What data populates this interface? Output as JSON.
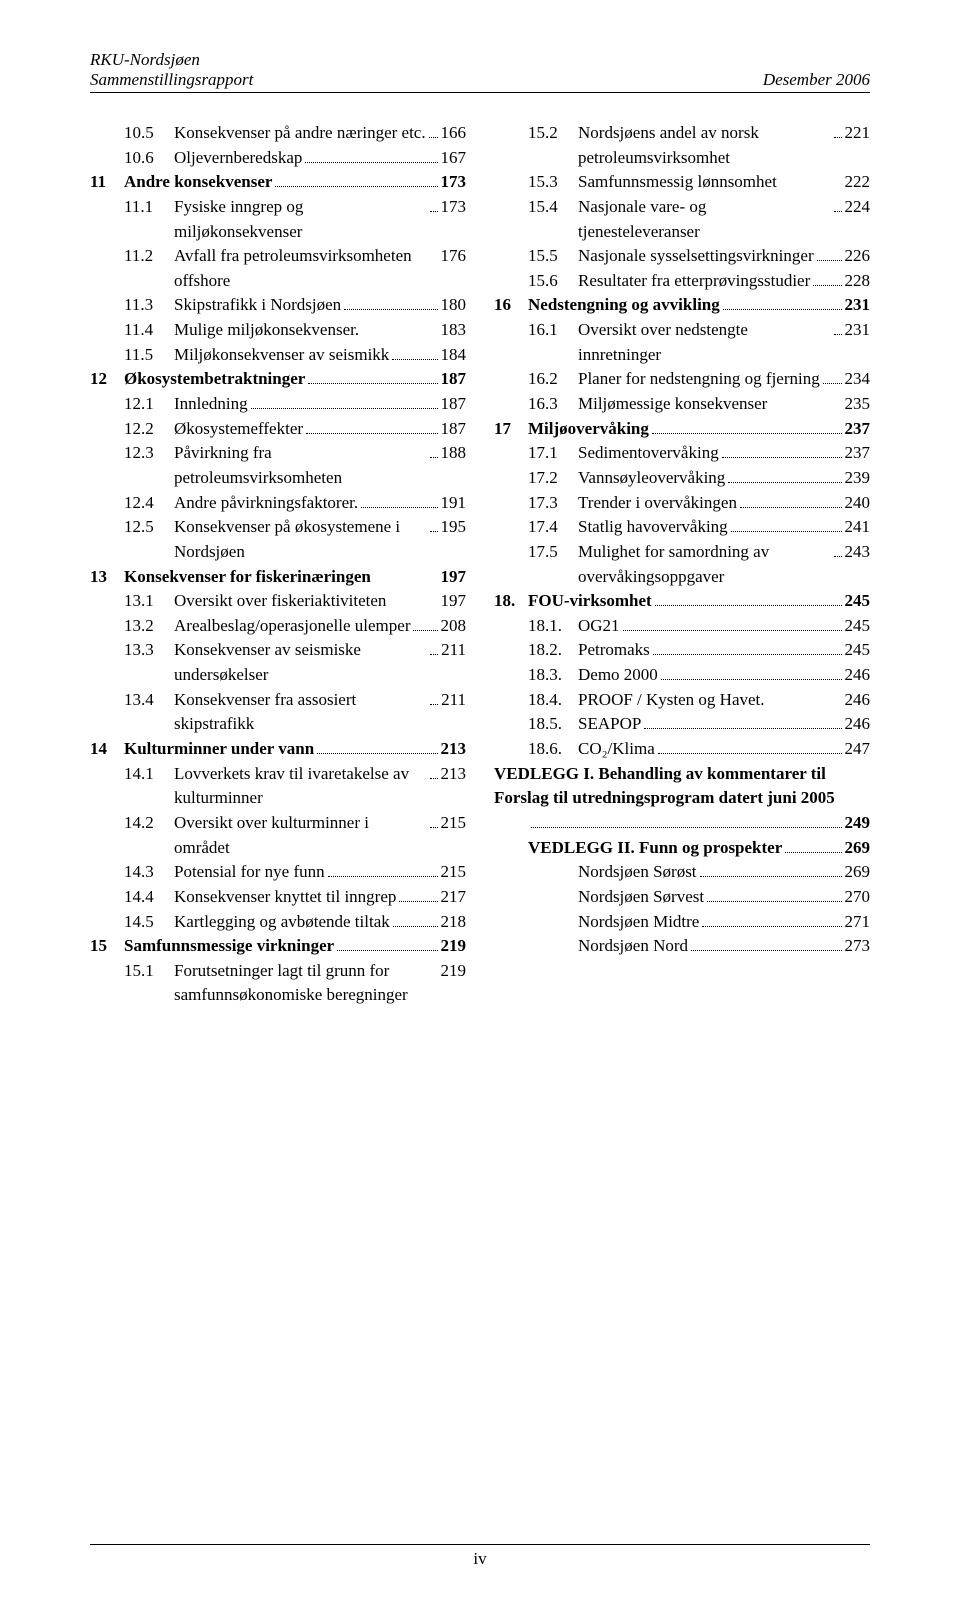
{
  "header": {
    "title_line1": "RKU-Nordsjøen",
    "title_line2": "Sammenstillingsrapport",
    "right": "Desember 2006"
  },
  "footer": {
    "page": "iv"
  },
  "left": [
    {
      "lvl": 2,
      "num": "10.5",
      "txt": "Konsekvenser på andre næringer etc.",
      "pg": "166"
    },
    {
      "lvl": 2,
      "num": "10.6",
      "txt": "Oljevernberedskap",
      "pg": "167"
    },
    {
      "lvl": 1,
      "num": "11",
      "txt": "Andre konsekvenser",
      "pg": "173"
    },
    {
      "lvl": 2,
      "num": "11.1",
      "txt": "Fysiske inngrep og miljøkonsekvenser",
      "pg": "173"
    },
    {
      "lvl": 2,
      "num": "11.2",
      "txt": "Avfall fra petroleumsvirksomheten offshore",
      "pg": "176",
      "nodots": true
    },
    {
      "lvl": 2,
      "num": "11.3",
      "txt": "Skipstrafikk i Nordsjøen",
      "pg": "180"
    },
    {
      "lvl": 2,
      "num": "11.4",
      "txt": "Mulige miljøkonsekvenser.",
      "pg": "183",
      "nodots": true
    },
    {
      "lvl": 2,
      "num": "11.5",
      "txt": "Miljøkonsekvenser av seismikk",
      "pg": "184"
    },
    {
      "lvl": 1,
      "num": "12",
      "txt": "Økosystembetraktninger",
      "pg": "187"
    },
    {
      "lvl": 2,
      "num": "12.1",
      "txt": "Innledning",
      "pg": "187"
    },
    {
      "lvl": 2,
      "num": "12.2",
      "txt": "Økosystemeffekter",
      "pg": "187"
    },
    {
      "lvl": 2,
      "num": "12.3",
      "txt": "Påvirkning fra petroleumsvirksomheten",
      "pg": "188"
    },
    {
      "lvl": 2,
      "num": "12.4",
      "txt": "Andre påvirkningsfaktorer.",
      "pg": "191"
    },
    {
      "lvl": 2,
      "num": "12.5",
      "txt": "Konsekvenser på økosystemene i Nordsjøen",
      "pg": "195"
    },
    {
      "lvl": 1,
      "num": "13",
      "txt": "Konsekvenser for fiskerinæringen",
      "pg": "197",
      "nodots": true
    },
    {
      "lvl": 2,
      "num": "13.1",
      "txt": "Oversikt over fiskeriaktiviteten",
      "pg": "197",
      "nodots": true
    },
    {
      "lvl": 2,
      "num": "13.2",
      "txt": "Arealbeslag/operasjonelle ulemper",
      "pg": "208"
    },
    {
      "lvl": 2,
      "num": "13.3",
      "txt": "Konsekvenser av seismiske undersøkelser",
      "pg": "211"
    },
    {
      "lvl": 2,
      "num": "13.4",
      "txt": "Konsekvenser fra assosiert skipstrafikk",
      "pg": "211"
    },
    {
      "lvl": 1,
      "num": "14",
      "txt": "Kulturminner under vann",
      "pg": "213"
    },
    {
      "lvl": 2,
      "num": "14.1",
      "txt": "Lovverkets krav til ivaretakelse av kulturminner",
      "pg": "213"
    },
    {
      "lvl": 2,
      "num": "14.2",
      "txt": "Oversikt over kulturminner i området",
      "pg": "215"
    },
    {
      "lvl": 2,
      "num": "14.3",
      "txt": "Potensial for nye funn",
      "pg": "215"
    },
    {
      "lvl": 2,
      "num": "14.4",
      "txt": "Konsekvenser knyttet til inngrep",
      "pg": "217"
    },
    {
      "lvl": 2,
      "num": "14.5",
      "txt": "Kartlegging og avbøtende tiltak",
      "pg": "218"
    },
    {
      "lvl": 1,
      "num": "15",
      "txt": "Samfunnsmessige virkninger",
      "pg": "219"
    },
    {
      "lvl": 2,
      "num": "15.1",
      "txt": "Forutsetninger lagt til grunn for samfunnsøkonomiske beregninger",
      "pg": "219",
      "nodots": true
    }
  ],
  "right": [
    {
      "lvl": 2,
      "num": "15.2",
      "txt": "Nordsjøens andel av norsk petroleumsvirksomhet",
      "pg": "221"
    },
    {
      "lvl": 2,
      "num": "15.3",
      "txt": "Samfunnsmessig lønnsomhet",
      "pg": "222",
      "nodots": true
    },
    {
      "lvl": 2,
      "num": "15.4",
      "txt": "Nasjonale vare- og tjenesteleveranser",
      "pg": "224"
    },
    {
      "lvl": 2,
      "num": "15.5",
      "txt": "Nasjonale sysselsettingsvirkninger",
      "pg": "226"
    },
    {
      "lvl": 2,
      "num": "15.6",
      "txt": "Resultater fra etterprøvingsstudier",
      "pg": "228"
    },
    {
      "lvl": 1,
      "num": "16",
      "txt": "Nedstengning og avvikling",
      "pg": "231"
    },
    {
      "lvl": 2,
      "num": "16.1",
      "txt": "Oversikt over nedstengte innretninger",
      "pg": "231"
    },
    {
      "lvl": 2,
      "num": "16.2",
      "txt": "Planer for nedstengning og fjerning",
      "pg": "234"
    },
    {
      "lvl": 2,
      "num": "16.3",
      "txt": "Miljømessige konsekvenser",
      "pg": "235",
      "nodots": true
    },
    {
      "lvl": 1,
      "num": "17",
      "txt": "Miljøovervåking",
      "pg": "237"
    },
    {
      "lvl": 2,
      "num": "17.1",
      "txt": "Sedimentovervåking",
      "pg": "237"
    },
    {
      "lvl": 2,
      "num": "17.2",
      "txt": "Vannsøyleovervåking",
      "pg": "239"
    },
    {
      "lvl": 2,
      "num": "17.3",
      "txt": "Trender i overvåkingen",
      "pg": "240"
    },
    {
      "lvl": 2,
      "num": "17.4",
      "txt": "Statlig havovervåking",
      "pg": "241"
    },
    {
      "lvl": 2,
      "num": "17.5",
      "txt": "Mulighet for samordning av overvåkingsoppgaver",
      "pg": "243"
    },
    {
      "lvl": 1,
      "num": "18.",
      "txt": "FOU-virksomhet",
      "pg": "245"
    },
    {
      "lvl": 2,
      "num": "18.1.",
      "txt": "OG21",
      "pg": "245"
    },
    {
      "lvl": 2,
      "num": "18.2.",
      "txt": "Petromaks",
      "pg": "245"
    },
    {
      "lvl": 2,
      "num": "18.3.",
      "txt": "Demo 2000",
      "pg": "246"
    },
    {
      "lvl": 2,
      "num": "18.4.",
      "txt": "PROOF / Kysten og Havet.",
      "pg": "246",
      "nodots": true
    },
    {
      "lvl": 2,
      "num": "18.5.",
      "txt": "SEAPOP",
      "pg": "246"
    },
    {
      "lvl": 2,
      "num": "18.6.",
      "txt": "CO₂/Klima",
      "pg": "247"
    },
    {
      "lvl": 1,
      "num": "",
      "txt": "VEDLEGG I. Behandling av kommentarer til Forslag til utredningsprogram datert juni 2005",
      "pg": "249",
      "multiline": true
    },
    {
      "lvl": 1,
      "num": "",
      "txt": "VEDLEGG II. Funn og prospekter",
      "pg": "269"
    },
    {
      "lvl": 2,
      "num": "",
      "txt": "Nordsjøen Sørøst",
      "pg": "269"
    },
    {
      "lvl": 2,
      "num": "",
      "txt": "Nordsjøen Sørvest",
      "pg": "270"
    },
    {
      "lvl": 2,
      "num": "",
      "txt": "Nordsjøen Midtre",
      "pg": "271"
    },
    {
      "lvl": 2,
      "num": "",
      "txt": "Nordsjøen Nord",
      "pg": "273"
    }
  ]
}
